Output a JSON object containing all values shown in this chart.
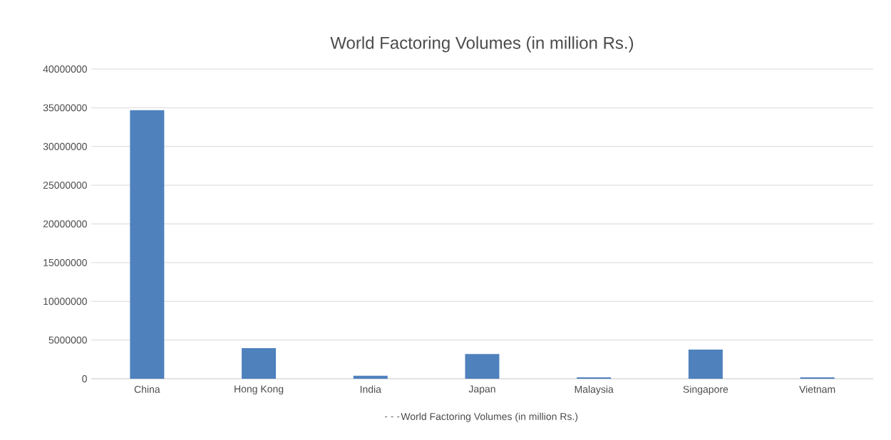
{
  "chart_data": {
    "type": "bar",
    "title": "World Factoring Volumes (in million Rs.)",
    "categories": [
      "China",
      "Hong Kong",
      "India",
      "Japan",
      "Malaysia",
      "Singapore",
      "Vietnam"
    ],
    "series": [
      {
        "name": "World Factoring Volumes (in million Rs.)",
        "color": "#4f81bd",
        "values": [
          34700000,
          3950000,
          380000,
          3190000,
          190000,
          3760000,
          190000
        ]
      }
    ],
    "ylim": [
      0,
      40000000
    ],
    "yticks": [
      0,
      5000000,
      10000000,
      15000000,
      20000000,
      25000000,
      30000000,
      35000000,
      40000000
    ],
    "grid": "y",
    "legend": "bottom"
  }
}
